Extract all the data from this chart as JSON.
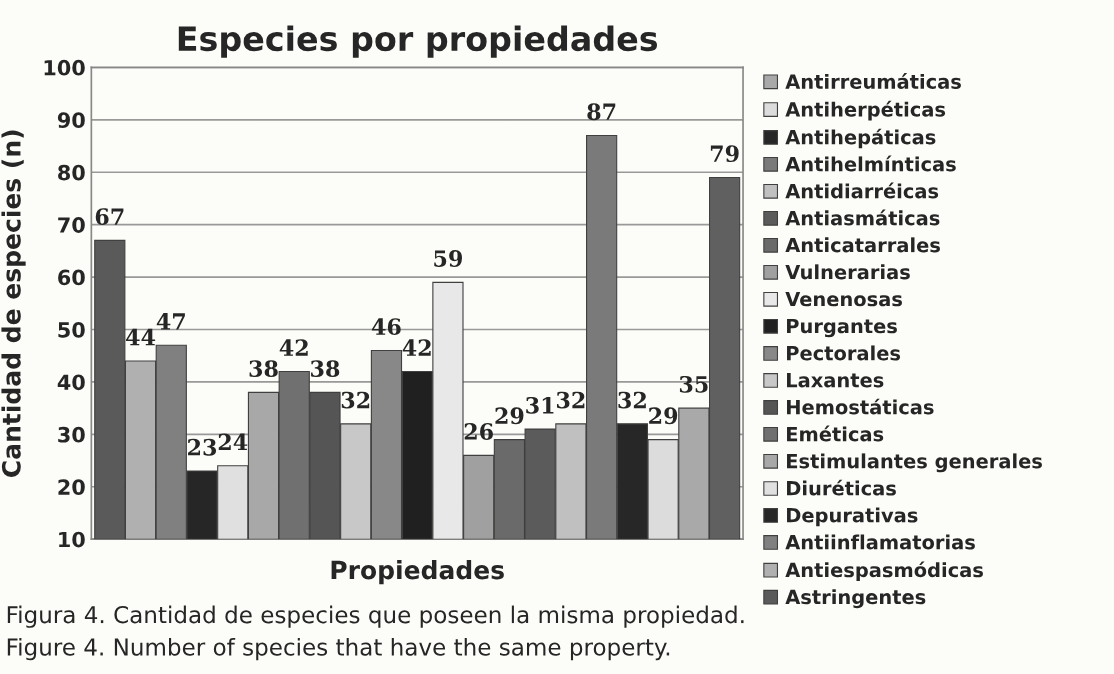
{
  "chart_data": {
    "type": "bar",
    "title": "Especies por propiedades",
    "xlabel": "Propiedades",
    "ylabel": "Cantidad de especies (n)",
    "annotations": [
      "Figura 4. Cantidad de especies que poseen la misma propiedad.",
      "Figure 4. Number of species that have the same property."
    ],
    "categories": [
      null,
      null,
      null,
      null,
      null,
      null,
      null,
      null,
      null,
      null,
      null,
      null,
      null,
      null,
      null,
      null,
      null,
      null,
      null,
      null,
      null
    ],
    "series": [
      {
        "name": "Astringentes",
        "color": "#5a5a5a",
        "values": [
          67,
          null,
          null,
          null,
          null,
          null,
          null,
          null,
          null,
          null,
          null,
          null,
          null,
          null,
          null,
          null,
          null,
          null,
          null,
          null,
          null
        ]
      },
      {
        "name": "Antiespasmódicas",
        "color": "#b0b0b0",
        "values": [
          null,
          44,
          null,
          null,
          null,
          null,
          null,
          null,
          null,
          null,
          null,
          null,
          null,
          null,
          null,
          null,
          null,
          null,
          null,
          null,
          null
        ]
      },
      {
        "name": "Antiinflamatorias",
        "color": "#808080",
        "values": [
          null,
          null,
          47,
          null,
          null,
          null,
          null,
          null,
          null,
          null,
          null,
          null,
          null,
          null,
          null,
          null,
          null,
          null,
          null,
          null,
          null
        ]
      },
      {
        "name": "Depurativas",
        "color": "#262626",
        "values": [
          null,
          null,
          null,
          23,
          null,
          null,
          null,
          null,
          null,
          null,
          null,
          null,
          null,
          null,
          null,
          null,
          null,
          null,
          null,
          null,
          null
        ]
      },
      {
        "name": "Diuréticas",
        "color": "#e0e0e0",
        "values": [
          null,
          null,
          null,
          null,
          24,
          null,
          null,
          null,
          null,
          null,
          null,
          null,
          null,
          null,
          null,
          null,
          null,
          null,
          null,
          null,
          null
        ]
      },
      {
        "name": "Estimulantes generales",
        "color": "#a8a8a8",
        "values": [
          null,
          null,
          null,
          null,
          null,
          38,
          null,
          null,
          null,
          null,
          null,
          null,
          null,
          null,
          null,
          null,
          null,
          null,
          null,
          null,
          null
        ]
      },
      {
        "name": "Eméticas",
        "color": "#707070",
        "values": [
          null,
          null,
          null,
          null,
          null,
          null,
          42,
          null,
          null,
          null,
          null,
          null,
          null,
          null,
          null,
          null,
          null,
          null,
          null,
          null,
          null
        ]
      },
      {
        "name": "Hemostáticas",
        "color": "#555555",
        "values": [
          null,
          null,
          null,
          null,
          null,
          null,
          null,
          38,
          null,
          null,
          null,
          null,
          null,
          null,
          null,
          null,
          null,
          null,
          null,
          null,
          null
        ]
      },
      {
        "name": "Laxantes",
        "color": "#c8c8c8",
        "values": [
          null,
          null,
          null,
          null,
          null,
          null,
          null,
          null,
          32,
          null,
          null,
          null,
          null,
          null,
          null,
          null,
          null,
          null,
          null,
          null,
          null
        ]
      },
      {
        "name": "Pectorales",
        "color": "#888888",
        "values": [
          null,
          null,
          null,
          null,
          null,
          null,
          null,
          null,
          null,
          46,
          null,
          null,
          null,
          null,
          null,
          null,
          null,
          null,
          null,
          null,
          null
        ]
      },
      {
        "name": "Purgantes",
        "color": "#202020",
        "values": [
          null,
          null,
          null,
          null,
          null,
          null,
          null,
          null,
          null,
          null,
          42,
          null,
          null,
          null,
          null,
          null,
          null,
          null,
          null,
          null,
          null
        ]
      },
      {
        "name": "Venenosas",
        "color": "#e8e8e8",
        "values": [
          null,
          null,
          null,
          null,
          null,
          null,
          null,
          null,
          null,
          null,
          null,
          59,
          null,
          null,
          null,
          null,
          null,
          null,
          null,
          null,
          null
        ]
      },
      {
        "name": "Vulnerarias",
        "color": "#a0a0a0",
        "values": [
          null,
          null,
          null,
          null,
          null,
          null,
          null,
          null,
          null,
          null,
          null,
          null,
          26,
          null,
          null,
          null,
          null,
          null,
          null,
          null,
          null
        ]
      },
      {
        "name": "Anticatarrales",
        "color": "#6a6a6a",
        "values": [
          null,
          null,
          null,
          null,
          null,
          null,
          null,
          null,
          null,
          null,
          null,
          null,
          null,
          29,
          null,
          null,
          null,
          null,
          null,
          null,
          null
        ]
      },
      {
        "name": "Antiasmáticas",
        "color": "#5b5b5b",
        "values": [
          null,
          null,
          null,
          null,
          null,
          null,
          null,
          null,
          null,
          null,
          null,
          null,
          null,
          null,
          31,
          null,
          null,
          null,
          null,
          null,
          null
        ]
      },
      {
        "name": "Antidiarréicas",
        "color": "#c0c0c0",
        "values": [
          null,
          null,
          null,
          null,
          null,
          null,
          null,
          null,
          null,
          null,
          null,
          null,
          null,
          null,
          null,
          32,
          null,
          null,
          null,
          null,
          null
        ]
      },
      {
        "name": "Antihelmínticas",
        "color": "#7a7a7a",
        "values": [
          null,
          null,
          null,
          null,
          null,
          null,
          null,
          null,
          null,
          null,
          null,
          null,
          null,
          null,
          null,
          null,
          87,
          null,
          null,
          null,
          null
        ]
      },
      {
        "name": "Antihepáticas",
        "color": "#272727",
        "values": [
          null,
          null,
          null,
          null,
          null,
          null,
          null,
          null,
          null,
          null,
          null,
          null,
          null,
          null,
          null,
          null,
          null,
          32,
          null,
          null,
          null
        ]
      },
      {
        "name": "Antiherpéticas",
        "color": "#dcdcdc",
        "values": [
          null,
          null,
          null,
          null,
          null,
          null,
          null,
          null,
          null,
          null,
          null,
          null,
          null,
          null,
          null,
          null,
          null,
          null,
          29,
          null,
          null
        ]
      },
      {
        "name": "Antirreumáticas",
        "color": "#a9a9a9",
        "values": [
          null,
          null,
          null,
          null,
          null,
          null,
          null,
          null,
          null,
          null,
          null,
          null,
          null,
          null,
          null,
          null,
          null,
          null,
          null,
          35,
          null
        ]
      },
      {
        "color": "#606060",
        "values": [
          null,
          null,
          null,
          null,
          null,
          null,
          null,
          null,
          null,
          null,
          null,
          null,
          null,
          null,
          null,
          null,
          null,
          null,
          null,
          null,
          79
        ]
      }
    ],
    "ylim": [
      10,
      100
    ],
    "yticks": [
      10,
      20,
      30,
      40,
      50,
      60,
      70,
      80,
      90,
      100
    ],
    "grid": "y",
    "legend": "right",
    "data_labels": true
  }
}
